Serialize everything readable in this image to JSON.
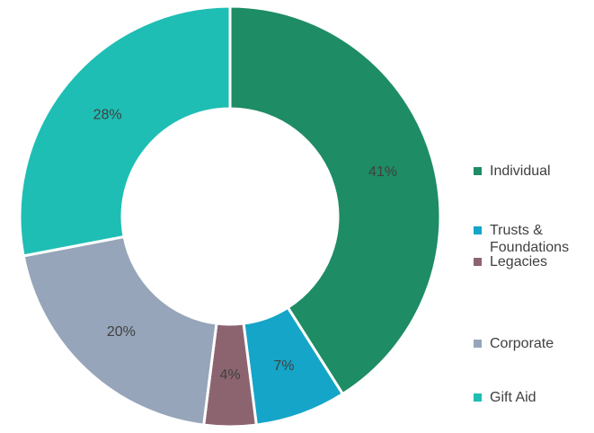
{
  "chart_data": {
    "type": "donut",
    "categories": [
      "Individual",
      "Trusts & Foundations",
      "Legacies",
      "Corporate",
      "Gift Aid"
    ],
    "values": [
      41,
      7,
      4,
      20,
      28
    ],
    "value_labels": [
      "41%",
      "7%",
      "4%",
      "20%",
      "28%"
    ],
    "colors": [
      "#1e8c64",
      "#14a5c8",
      "#8c6470",
      "#96a5b9",
      "#1ebeb4"
    ],
    "legend": "right"
  }
}
